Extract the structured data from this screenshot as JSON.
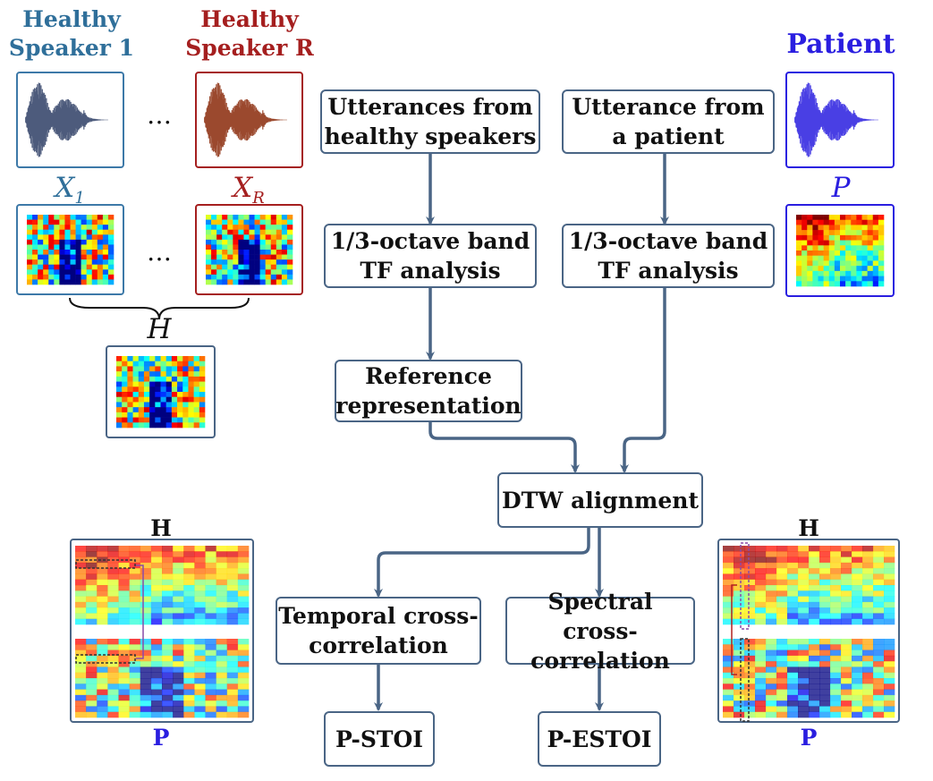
{
  "speakers": {
    "healthy_1": "Healthy\nSpeaker 1",
    "healthy_r": "Healthy\nSpeaker R",
    "patient": "Patient"
  },
  "spectrogram_labels": {
    "x1_base": "X",
    "x1_sub": "1",
    "xr_base": "X",
    "xr_sub": "R",
    "p": "P",
    "h": "H"
  },
  "ellipsis": "…",
  "flow": {
    "utt_healthy": "Utterances from\nhealthy speakers",
    "utt_patient": "Utterance from\na patient",
    "tf_healthy": "1/3-octave band\nTF analysis",
    "tf_patient": "1/3-octave band\nTF analysis",
    "reference": "Reference\nrepresentation",
    "dtw": "DTW alignment",
    "temporal": "Temporal cross-\ncorrelation",
    "spectral": "Spectral cross-\ncorrelation",
    "pstoi": "P-STOI",
    "pestoi": "P-ESTOI"
  },
  "bottom_labels": {
    "left_h": "H",
    "left_p": "P",
    "right_h": "H",
    "right_p": "P"
  },
  "colors": {
    "healthy_1": "#2f6f9a",
    "healthy_r": "#a51f1f",
    "patient": "#2a1ee0",
    "arrow": "#4a6585"
  }
}
